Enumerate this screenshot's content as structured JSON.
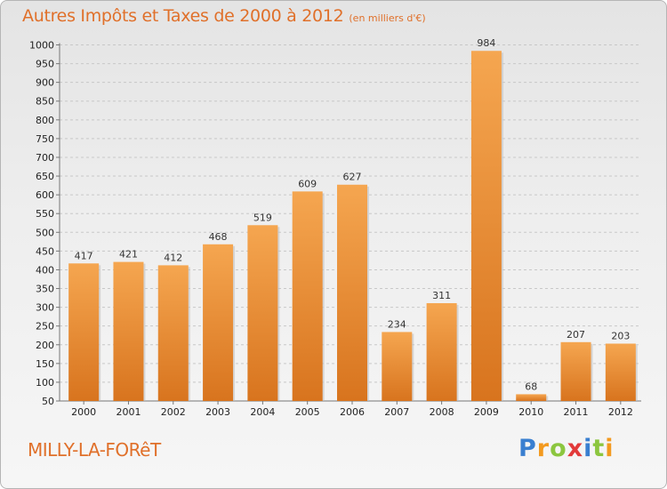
{
  "header": {
    "title": "Autres Impôts et Taxes de 2000 à 2012",
    "subtitle": "(en milliers d'€)"
  },
  "footer": {
    "commune": "MILLY-LA-FORêT",
    "logo_text": "Proxiti",
    "logo_colors": [
      "#3a7fd0",
      "#f39a1f",
      "#8cc63f",
      "#e23a3a",
      "#3a7fd0",
      "#8cc63f",
      "#f39a1f"
    ]
  },
  "colors": {
    "bar_light": "#f5a650",
    "bar_dark": "#d8741e",
    "title": "#e0702a"
  },
  "chart_data": {
    "type": "bar",
    "title": "Autres Impôts et Taxes de 2000 à 2012",
    "subtitle": "(en milliers d'€)",
    "categories": [
      "2000",
      "2001",
      "2002",
      "2003",
      "2004",
      "2005",
      "2006",
      "2007",
      "2008",
      "2009",
      "2010",
      "2011",
      "2012"
    ],
    "values": [
      417,
      421,
      412,
      468,
      519,
      609,
      627,
      234,
      311,
      984,
      68,
      207,
      203
    ],
    "xlabel": "",
    "ylabel": "",
    "ylim": [
      50,
      1000
    ],
    "yticks": [
      50,
      100,
      150,
      200,
      250,
      300,
      350,
      400,
      450,
      500,
      550,
      600,
      650,
      700,
      750,
      800,
      850,
      900,
      950,
      1000
    ],
    "grid": "horizontal-dashed",
    "legend": "none"
  }
}
